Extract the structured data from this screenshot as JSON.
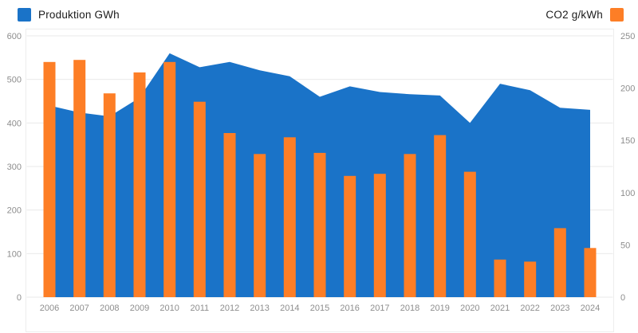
{
  "legend": {
    "production": {
      "label": "Produktion GWh",
      "color": "#1a73c8"
    },
    "co2": {
      "label": "CO2 g/kWh",
      "color": "#fd7e26"
    }
  },
  "chart_data": {
    "type": "combo",
    "title": "",
    "categories": [
      "2006",
      "2007",
      "2008",
      "2009",
      "2010",
      "2011",
      "2012",
      "2013",
      "2014",
      "2015",
      "2016",
      "2017",
      "2018",
      "2019",
      "2020",
      "2021",
      "2022",
      "2023",
      "2024"
    ],
    "series": [
      {
        "name": "Produktion GWh",
        "type": "area",
        "axis": "left",
        "color": "#1a73c8",
        "values": [
          440,
          424,
          415,
          458,
          560,
          528,
          540,
          521,
          507,
          460,
          484,
          471,
          466,
          463,
          400,
          490,
          475,
          435,
          430
        ]
      },
      {
        "name": "CO2 g/kWh",
        "type": "bar",
        "axis": "right",
        "color": "#fd7e26",
        "values": [
          225,
          227,
          195,
          215,
          225,
          187,
          157,
          137,
          153,
          138,
          116,
          118,
          137,
          155,
          120,
          36,
          34,
          66,
          47
        ]
      }
    ],
    "left_axis": {
      "label": "Produktion GWh",
      "min": 0,
      "max": 600,
      "ticks": [
        0,
        100,
        200,
        300,
        400,
        500,
        600
      ]
    },
    "right_axis": {
      "label": "CO2 g/kWh",
      "min": 0,
      "max": 250,
      "ticks": [
        0,
        50,
        100,
        150,
        200,
        250
      ]
    },
    "grid": "horizontal",
    "legend_position": "top",
    "colors": {
      "grid_line": "#e9e9e9",
      "panel_border": "#ededed",
      "tick_text": "#8d8d8d"
    }
  }
}
